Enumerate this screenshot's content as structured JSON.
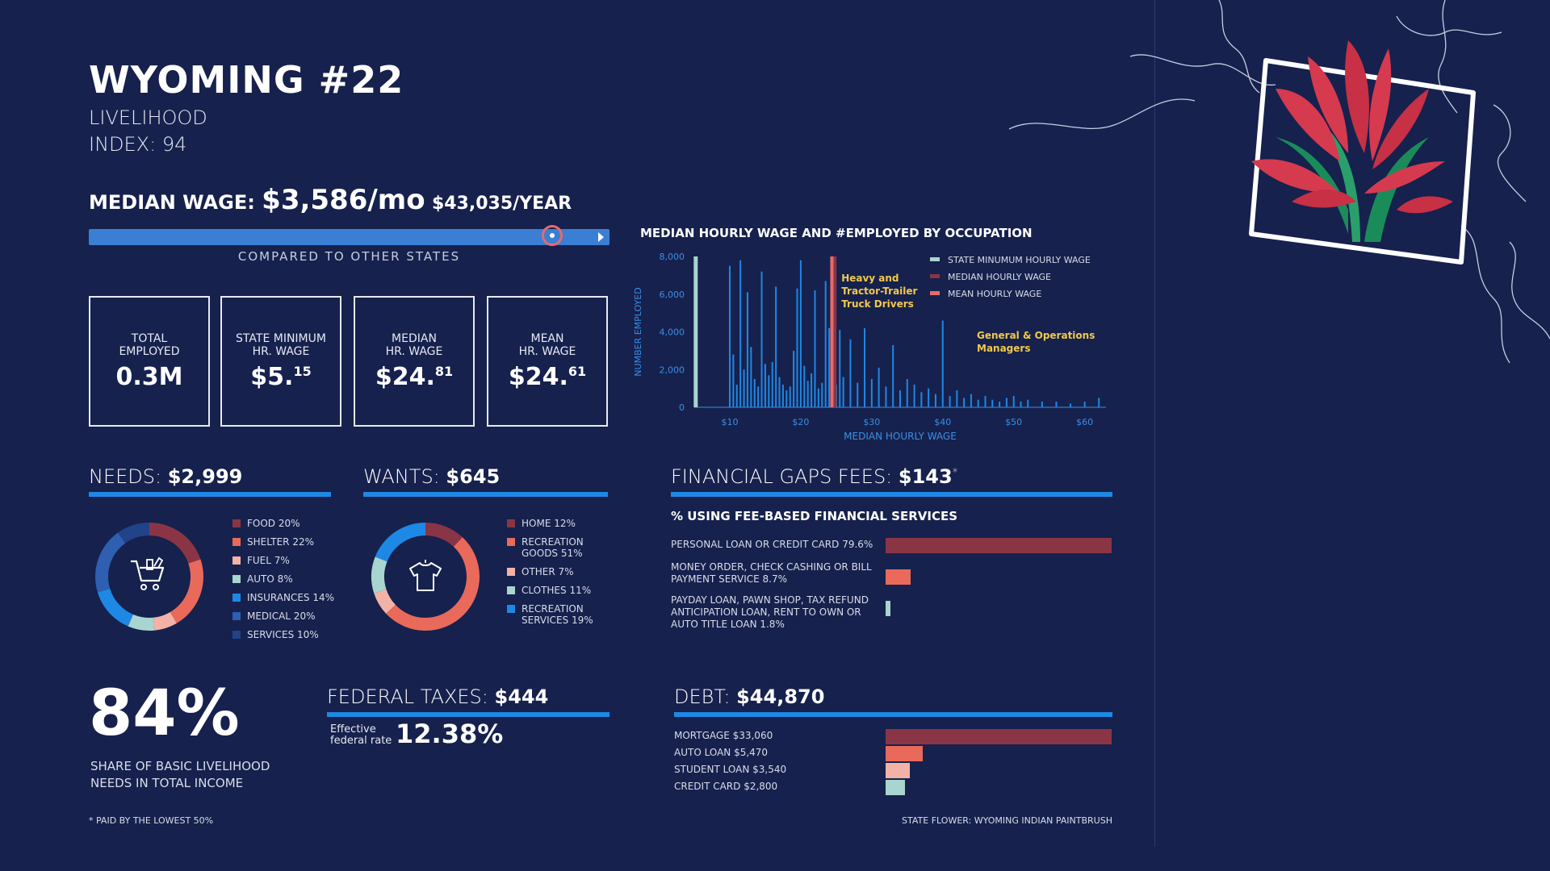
{
  "header": {
    "title": "WYOMING #22",
    "subtitle_line1": "LIVELIHOOD",
    "subtitle_line2": "INDEX: 94"
  },
  "median_wage": {
    "label": "MEDIAN WAGE:",
    "monthly": "$3,586/mo",
    "yearly": "$43,035/YEAR",
    "compare_label": "COMPARED TO OTHER STATES",
    "rank_fraction": 0.89
  },
  "stats": [
    {
      "label": "TOTAL\nEMPLOYED",
      "value": "0.3M",
      "sup": ""
    },
    {
      "label": "STATE MINIMUM\nHR. WAGE",
      "value": "$5.",
      "sup": "15"
    },
    {
      "label": "MEDIAN\nHR. WAGE",
      "value": "$24.",
      "sup": "81"
    },
    {
      "label": "MEAN\nHR. WAGE",
      "value": "$24.",
      "sup": "61"
    }
  ],
  "occupation_chart": {
    "title": "MEDIAN HOURLY WAGE AND #EMPLOYED BY OCCUPATION",
    "xlabel": "MEDIAN HOURLY WAGE",
    "ylabel": "NUMBER EMPLOYED",
    "annotation1": "Heavy and\nTractor-Trailer\nTruck Drivers",
    "annotation2": "General & Operations\nManagers",
    "legend": [
      "STATE MINUMUM HOURLY WAGE",
      "MEDIAN HOURLY WAGE",
      "MEAN HOURLY WAGE"
    ],
    "legend_colors": [
      "#a8d5cf",
      "#8a3545",
      "#e96a6a"
    ]
  },
  "chart_data": {
    "type": "bar",
    "xlim": [
      5,
      63
    ],
    "ylim": [
      0,
      8000
    ],
    "xticks": [
      "$10",
      "$20",
      "$30",
      "$40",
      "$50",
      "$60"
    ],
    "xtick_values": [
      10,
      20,
      30,
      40,
      50,
      60
    ],
    "yticks": [
      "0",
      "2,000",
      "4,000",
      "6,000",
      "8,000"
    ],
    "ytick_values": [
      0,
      2000,
      4000,
      6000,
      8000
    ],
    "markers": {
      "state_min": 5.15,
      "median": 24.81,
      "mean": 24.61
    },
    "x": [
      10.0,
      10.5,
      11.0,
      11.5,
      12.0,
      12.5,
      13.0,
      13.5,
      14.0,
      14.5,
      15.0,
      15.5,
      16.0,
      16.5,
      17.0,
      17.5,
      18.0,
      18.5,
      19.0,
      19.5,
      20.0,
      20.5,
      21.0,
      21.5,
      22.0,
      22.5,
      23.0,
      23.5,
      24.0,
      24.5,
      25.0,
      25.5,
      26.0,
      27.0,
      28.0,
      29.0,
      30.0,
      31.0,
      32.0,
      33.0,
      34.0,
      35.0,
      36.0,
      37.0,
      38.0,
      39.0,
      40.0,
      41.0,
      42.0,
      43.0,
      44.0,
      45.0,
      46.0,
      47.0,
      48.0,
      49.0,
      50.0,
      51.0,
      52.0,
      54.0,
      56.0,
      58.0,
      60.0,
      62.0
    ],
    "values": [
      7500,
      2800,
      1200,
      7800,
      2000,
      6100,
      3200,
      1500,
      1100,
      7200,
      2300,
      1700,
      2400,
      6400,
      1600,
      1200,
      900,
      1100,
      3000,
      6300,
      7800,
      2200,
      1400,
      1800,
      6200,
      1000,
      1300,
      6700,
      4200,
      6800,
      1200,
      4100,
      1600,
      3600,
      1300,
      4200,
      1500,
      2100,
      1100,
      3300,
      900,
      1500,
      1200,
      800,
      1000,
      700,
      4600,
      600,
      900,
      500,
      700,
      400,
      600,
      400,
      300,
      500,
      600,
      300,
      400,
      300,
      300,
      200,
      300,
      500
    ]
  },
  "needs": {
    "label": "NEEDS:",
    "value": "$2,999",
    "items": [
      {
        "label": "FOOD 20%",
        "pct": 20,
        "color": "#8a3545"
      },
      {
        "label": "SHELTER 22%",
        "pct": 22,
        "color": "#e96a5a"
      },
      {
        "label": "FUEL 7%",
        "pct": 7,
        "color": "#f2b3a6"
      },
      {
        "label": "AUTO 8%",
        "pct": 8,
        "color": "#a8d5cf"
      },
      {
        "label": "INSURANCES 14%",
        "pct": 14,
        "color": "#1e88e5"
      },
      {
        "label": "MEDICAL 20%",
        "pct": 20,
        "color": "#2e5fb0"
      },
      {
        "label": "SERVICES 10%",
        "pct": 10,
        "color": "#22428a"
      }
    ]
  },
  "wants": {
    "label": "WANTS:",
    "value": "$645",
    "items": [
      {
        "label": "HOME 12%",
        "pct": 12,
        "color": "#8a3545"
      },
      {
        "label": "RECREATION GOODS 51%",
        "pct": 51,
        "color": "#e96a5a"
      },
      {
        "label": "OTHER 7%",
        "pct": 7,
        "color": "#f2b3a6"
      },
      {
        "label": "CLOTHES 11%",
        "pct": 11,
        "color": "#a8d5cf"
      },
      {
        "label": "RECREATION SERVICES 19%",
        "pct": 19,
        "color": "#1e88e5"
      }
    ]
  },
  "fees": {
    "label": "FINANCIAL GAPS FEES:",
    "value": "$143",
    "asterisk": "*",
    "subtitle": "% USING FEE-BASED FINANCIAL SERVICES",
    "items": [
      {
        "label": "PERSONAL LOAN OR CREDIT CARD 79.6%",
        "pct": 79.6,
        "color": "#8a3545"
      },
      {
        "label": "MONEY ORDER, CHECK CASHING OR BILL PAYMENT SERVICE 8.7%",
        "pct": 8.7,
        "color": "#e96a5a"
      },
      {
        "label": "PAYDAY LOAN, PAWN SHOP, TAX REFUND ANTICIPATION LOAN, RENT TO OWN OR AUTO TITLE LOAN 1.8%",
        "pct": 1.8,
        "color": "#a8d5cf"
      }
    ]
  },
  "share": {
    "value": "84%",
    "label_line1": "SHARE OF BASIC LIVELIHOOD",
    "label_line2": "NEEDS IN TOTAL INCOME"
  },
  "taxes": {
    "label": "FEDERAL TAXES:",
    "value": "$444",
    "rate_label1": "Effective",
    "rate_label2": "federal rate",
    "rate_value": "12.38%"
  },
  "debt": {
    "label": "DEBT:",
    "value": "$44,870",
    "items": [
      {
        "label": "MORTGAGE $33,060",
        "amount": 33060,
        "color": "#8a3545"
      },
      {
        "label": "AUTO LOAN $5,470",
        "amount": 5470,
        "color": "#e96a5a"
      },
      {
        "label": "STUDENT LOAN $3,540",
        "amount": 3540,
        "color": "#f2b3a6"
      },
      {
        "label": "CREDIT CARD $2,800",
        "amount": 2800,
        "color": "#a8d5cf"
      }
    ]
  },
  "footnote": "* PAID BY THE LOWEST 50%",
  "state_flower": "STATE FLOWER: WYOMING INDIAN PAINTBRUSH"
}
